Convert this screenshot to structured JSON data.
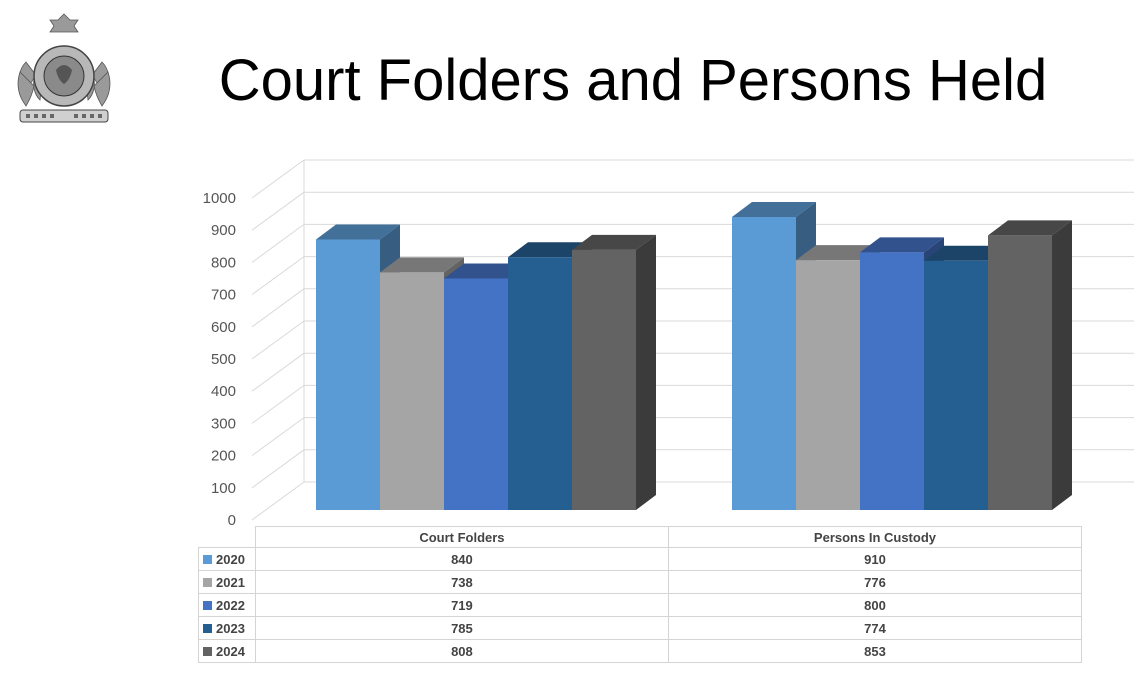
{
  "title": "Court Folders and Persons Held",
  "logo": {
    "type": "emblem",
    "motto": "MAINTIENS LE DROIT"
  },
  "chart_data": {
    "type": "bar",
    "title": "",
    "categories": [
      "Court Folders",
      "Persons In Custody"
    ],
    "series": [
      {
        "name": "2020",
        "color": "#5b9bd5",
        "values": [
          840,
          910
        ]
      },
      {
        "name": "2021",
        "color": "#a5a5a5",
        "values": [
          738,
          776
        ]
      },
      {
        "name": "2022",
        "color": "#4472c4",
        "values": [
          719,
          800
        ]
      },
      {
        "name": "2023",
        "color": "#255e91",
        "values": [
          785,
          774
        ]
      },
      {
        "name": "2024",
        "color": "#636363",
        "values": [
          808,
          853
        ]
      }
    ],
    "ylim": [
      0,
      1000
    ],
    "yticks": [
      "0",
      "100",
      "200",
      "300",
      "400",
      "500",
      "600",
      "700",
      "800",
      "900",
      "1000"
    ],
    "grid": true,
    "style": "3d-column",
    "legend": "data-table-below"
  }
}
